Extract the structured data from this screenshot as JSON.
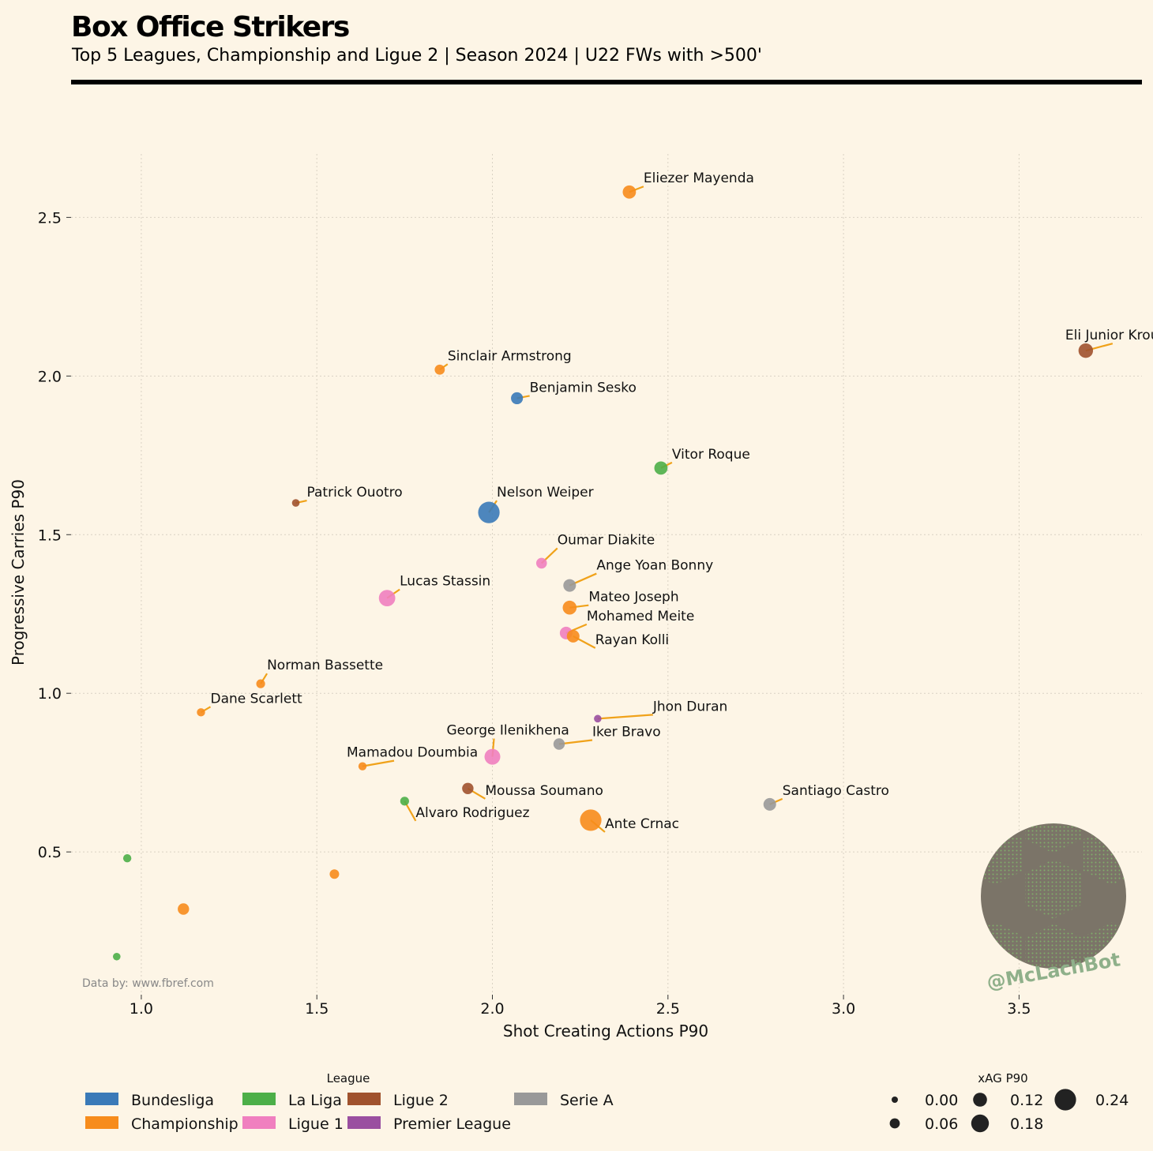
{
  "header": {
    "title": "Box Office Strikers",
    "subtitle": "Top 5 Leagues, Championship and Ligue 2 | Season 2024 | U22 FWs with >500'"
  },
  "credit": "Data by: www.fbref.com",
  "handle": "@McLachBot",
  "colors": {
    "Bundesliga": "#3a7ab8",
    "Championship": "#f78c1c",
    "La Liga": "#4caf48",
    "Ligue 2": "#a0522d",
    "Ligue 1": "#f07fbf",
    "Premier League": "#9a4fa0",
    "Serie A": "#999999",
    "connector": "#f0a21a"
  },
  "legend": {
    "league_title": "League",
    "leagues": [
      "Bundesliga",
      "Championship",
      "La Liga",
      "Ligue 1",
      "Ligue 2",
      "Premier League",
      "Serie A"
    ],
    "size_title": "xAG P90",
    "sizes": [
      "0.00",
      "0.06",
      "0.12",
      "0.18",
      "0.24"
    ]
  },
  "chart_data": {
    "type": "scatter",
    "xlabel": "Shot Creating Actions P90",
    "ylabel": "Progressive Carries P90",
    "xlim": [
      0.8,
      3.85
    ],
    "ylim": [
      0.05,
      2.7
    ],
    "xticks": [
      "1.0",
      "1.5",
      "2.0",
      "2.5",
      "3.0",
      "3.5"
    ],
    "yticks": [
      "0.5",
      "1.0",
      "1.5",
      "2.0",
      "2.5"
    ],
    "grid": true,
    "points": [
      {
        "name": "Eliezer Mayenda",
        "league": "Championship",
        "x": 2.39,
        "y": 2.58,
        "xag": 0.11
      },
      {
        "name": "Eli Junior Kroupi",
        "league": "Ligue 2",
        "x": 3.69,
        "y": 2.08,
        "xag": 0.13
      },
      {
        "name": "Sinclair Armstrong",
        "league": "Championship",
        "x": 1.85,
        "y": 2.02,
        "xag": 0.06
      },
      {
        "name": "Benjamin Sesko",
        "league": "Bundesliga",
        "x": 2.07,
        "y": 1.93,
        "xag": 0.09
      },
      {
        "name": "Vitor Roque",
        "league": "La Liga",
        "x": 2.48,
        "y": 1.71,
        "xag": 0.11
      },
      {
        "name": "Patrick Ouotro",
        "league": "Ligue 2",
        "x": 1.44,
        "y": 1.6,
        "xag": 0.02
      },
      {
        "name": "Nelson Weiper",
        "league": "Bundesliga",
        "x": 1.99,
        "y": 1.57,
        "xag": 0.24
      },
      {
        "name": "Oumar Diakite",
        "league": "Ligue 1",
        "x": 2.14,
        "y": 1.41,
        "xag": 0.07
      },
      {
        "name": "Ange Yoan Bonny",
        "league": "Serie A",
        "x": 2.22,
        "y": 1.34,
        "xag": 0.1
      },
      {
        "name": "Lucas Stassin",
        "league": "Ligue 1",
        "x": 1.7,
        "y": 1.3,
        "xag": 0.16
      },
      {
        "name": "Mateo Joseph",
        "league": "Championship",
        "x": 2.22,
        "y": 1.27,
        "xag": 0.12
      },
      {
        "name": "Mohamed Meite",
        "league": "Ligue 1",
        "x": 2.21,
        "y": 1.19,
        "xag": 0.1
      },
      {
        "name": "Rayan Kolli",
        "league": "Championship",
        "x": 2.23,
        "y": 1.18,
        "xag": 0.1
      },
      {
        "name": "Norman Bassette",
        "league": "Championship",
        "x": 1.34,
        "y": 1.03,
        "xag": 0.04
      },
      {
        "name": "Dane Scarlett",
        "league": "Championship",
        "x": 1.17,
        "y": 0.94,
        "xag": 0.03
      },
      {
        "name": "Jhon Duran",
        "league": "Premier League",
        "x": 2.3,
        "y": 0.92,
        "xag": 0.02
      },
      {
        "name": "Iker Bravo",
        "league": "Serie A",
        "x": 2.19,
        "y": 0.84,
        "xag": 0.08
      },
      {
        "name": "George Ilenikhena",
        "league": "Ligue 1",
        "x": 2.0,
        "y": 0.8,
        "xag": 0.15
      },
      {
        "name": "Mamadou Doumbia",
        "league": "Championship",
        "x": 1.63,
        "y": 0.77,
        "xag": 0.03
      },
      {
        "name": "Moussa Soumano",
        "league": "Ligue 2",
        "x": 1.93,
        "y": 0.7,
        "xag": 0.08
      },
      {
        "name": "Alvaro Rodriguez",
        "league": "La Liga",
        "x": 1.75,
        "y": 0.66,
        "xag": 0.04
      },
      {
        "name": "Santiago Castro",
        "league": "Serie A",
        "x": 2.79,
        "y": 0.65,
        "xag": 0.1
      },
      {
        "name": "Ante Crnac",
        "league": "Championship",
        "x": 2.28,
        "y": 0.6,
        "xag": 0.24
      },
      {
        "name": "",
        "league": "La Liga",
        "x": 0.96,
        "y": 0.48,
        "xag": 0.03
      },
      {
        "name": "",
        "league": "Championship",
        "x": 1.55,
        "y": 0.43,
        "xag": 0.05
      },
      {
        "name": "",
        "league": "Championship",
        "x": 1.12,
        "y": 0.32,
        "xag": 0.08
      },
      {
        "name": "",
        "league": "La Liga",
        "x": 0.93,
        "y": 0.17,
        "xag": 0.02
      }
    ]
  }
}
